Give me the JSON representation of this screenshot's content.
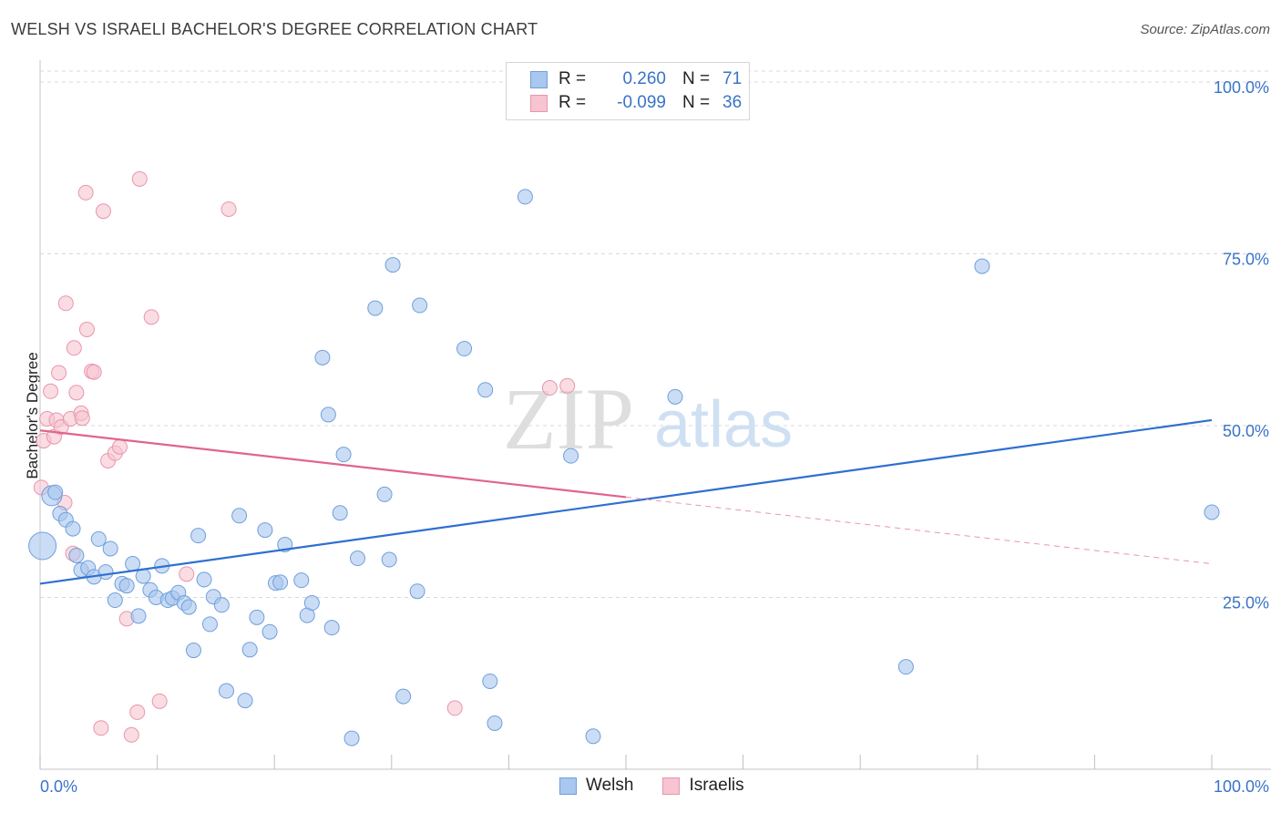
{
  "title": "WELSH VS ISRAELI BACHELOR'S DEGREE CORRELATION CHART",
  "source": "Source: ZipAtlas.com",
  "watermark": {
    "zip": "ZIP",
    "atlas": "atlas"
  },
  "legend": {
    "rows": [
      {
        "r_label": "R =",
        "r_value": "0.260",
        "n_label": "N =",
        "n_value": "71",
        "color": "#a9c7ef",
        "border": "#6f9fdc"
      },
      {
        "r_label": "R =",
        "r_value": "-0.099",
        "n_label": "N =",
        "n_value": "36",
        "color": "#f7c4d1",
        "border": "#e995ad"
      }
    ]
  },
  "bottom_legend": [
    {
      "label": "Welsh",
      "color": "#a9c7ef",
      "border": "#6f9fdc"
    },
    {
      "label": "Israelis",
      "color": "#f7c4d1",
      "border": "#e995ad"
    }
  ],
  "chart_data": {
    "type": "scatter",
    "title": "WELSH VS ISRAELI BACHELOR'S DEGREE CORRELATION CHART",
    "xlabel": "",
    "ylabel": "Bachelor's Degree",
    "xlim": [
      0,
      100
    ],
    "ylim": [
      0,
      100
    ],
    "x_tick_labels": [
      "0.0%",
      "100.0%"
    ],
    "y_tick_labels": [
      {
        "value": 100,
        "label": "100.0%"
      },
      {
        "value": 75,
        "label": "75.0%"
      },
      {
        "value": 50,
        "label": "50.0%"
      },
      {
        "value": 25,
        "label": "25.0%"
      }
    ],
    "grid": true,
    "series": [
      {
        "name": "Welsh",
        "color": "#6f9fdc",
        "fill": "#a9c7ef",
        "points": [
          [
            0.2,
            32.5
          ],
          [
            1.0,
            39.8
          ],
          [
            1.3,
            40.3
          ],
          [
            1.7,
            37.2
          ],
          [
            2.2,
            36.3
          ],
          [
            2.8,
            35.0
          ],
          [
            3.1,
            31.1
          ],
          [
            3.5,
            29.0
          ],
          [
            4.1,
            29.3
          ],
          [
            4.6,
            28.0
          ],
          [
            5.0,
            33.5
          ],
          [
            5.6,
            28.7
          ],
          [
            6.0,
            32.1
          ],
          [
            6.4,
            24.6
          ],
          [
            7.0,
            27.0
          ],
          [
            7.4,
            26.7
          ],
          [
            7.9,
            29.9
          ],
          [
            8.4,
            22.3
          ],
          [
            8.8,
            28.1
          ],
          [
            9.4,
            26.1
          ],
          [
            9.9,
            25.0
          ],
          [
            10.4,
            29.6
          ],
          [
            10.9,
            24.6
          ],
          [
            11.3,
            24.9
          ],
          [
            11.8,
            25.7
          ],
          [
            12.3,
            24.2
          ],
          [
            12.7,
            23.6
          ],
          [
            13.1,
            17.3
          ],
          [
            13.5,
            34.0
          ],
          [
            14.0,
            27.6
          ],
          [
            14.5,
            21.1
          ],
          [
            14.8,
            25.1
          ],
          [
            15.5,
            23.9
          ],
          [
            15.9,
            11.4
          ],
          [
            17.0,
            36.9
          ],
          [
            17.5,
            10.0
          ],
          [
            17.9,
            17.4
          ],
          [
            18.5,
            22.1
          ],
          [
            19.2,
            34.8
          ],
          [
            19.6,
            20.0
          ],
          [
            20.1,
            27.1
          ],
          [
            20.5,
            27.2
          ],
          [
            20.9,
            32.7
          ],
          [
            22.3,
            27.5
          ],
          [
            22.8,
            22.4
          ],
          [
            23.2,
            24.2
          ],
          [
            24.1,
            59.9
          ],
          [
            24.6,
            51.6
          ],
          [
            24.9,
            20.6
          ],
          [
            25.6,
            37.3
          ],
          [
            25.9,
            45.8
          ],
          [
            26.6,
            4.5
          ],
          [
            27.1,
            30.7
          ],
          [
            28.6,
            67.1
          ],
          [
            29.4,
            40.0
          ],
          [
            29.8,
            30.5
          ],
          [
            30.1,
            73.4
          ],
          [
            31.0,
            10.6
          ],
          [
            32.2,
            25.9
          ],
          [
            32.4,
            67.5
          ],
          [
            36.2,
            61.2
          ],
          [
            38.0,
            55.2
          ],
          [
            38.4,
            12.8
          ],
          [
            38.8,
            6.7
          ],
          [
            41.4,
            83.3
          ],
          [
            45.3,
            45.6
          ],
          [
            47.2,
            4.8
          ],
          [
            54.2,
            54.2
          ],
          [
            73.9,
            14.9
          ],
          [
            80.4,
            73.2
          ],
          [
            100.0,
            37.4
          ]
        ],
        "trend": {
          "x": [
            0,
            100
          ],
          "y": [
            27.0,
            50.8
          ]
        }
      },
      {
        "name": "Israelis",
        "color": "#e995ad",
        "fill": "#f7c4d1",
        "points": [
          [
            0.1,
            41.0
          ],
          [
            0.3,
            47.8
          ],
          [
            0.6,
            51.0
          ],
          [
            0.9,
            55.0
          ],
          [
            1.2,
            48.4
          ],
          [
            1.4,
            50.8
          ],
          [
            1.6,
            57.7
          ],
          [
            1.8,
            49.8
          ],
          [
            2.1,
            38.8
          ],
          [
            2.2,
            67.8
          ],
          [
            2.6,
            51.0
          ],
          [
            2.8,
            31.4
          ],
          [
            2.9,
            61.3
          ],
          [
            3.1,
            54.8
          ],
          [
            3.5,
            51.8
          ],
          [
            3.6,
            51.1
          ],
          [
            3.9,
            83.9
          ],
          [
            4.0,
            64.0
          ],
          [
            4.4,
            57.9
          ],
          [
            4.6,
            57.8
          ],
          [
            5.2,
            6.0
          ],
          [
            5.4,
            81.2
          ],
          [
            5.8,
            44.9
          ],
          [
            6.4,
            46.0
          ],
          [
            6.8,
            46.9
          ],
          [
            7.4,
            21.9
          ],
          [
            7.8,
            5.0
          ],
          [
            8.3,
            8.3
          ],
          [
            8.5,
            85.9
          ],
          [
            9.5,
            65.8
          ],
          [
            10.2,
            9.9
          ],
          [
            12.5,
            28.4
          ],
          [
            16.1,
            81.5
          ],
          [
            35.4,
            8.9
          ],
          [
            43.5,
            55.5
          ],
          [
            45.0,
            55.8
          ]
        ],
        "trend": {
          "x": [
            0,
            50
          ],
          "y": [
            49.3,
            39.6
          ]
        },
        "trend_dashed": {
          "x": [
            50,
            100
          ],
          "y": [
            39.6,
            29.9
          ]
        }
      }
    ]
  }
}
